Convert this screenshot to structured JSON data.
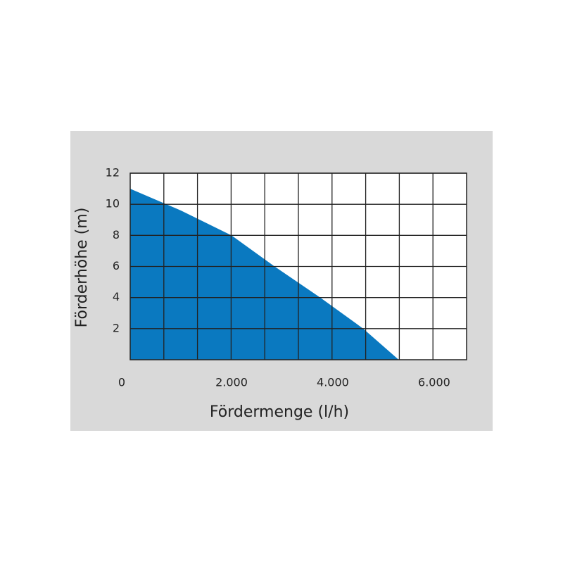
{
  "chart_data": {
    "type": "area",
    "x_label": "Fördermenge (l/h)",
    "y_label": "Förderhöhe (m)",
    "x": [
      0,
      1000,
      2000,
      2850,
      3750,
      4600,
      5300
    ],
    "values": [
      11,
      9.6,
      8,
      6,
      4,
      2,
      0
    ],
    "color": "#0a79c0",
    "xlim": [
      0,
      6640
    ],
    "xticks": [
      0,
      {
        "value": 2000,
        "label": "2.000"
      },
      {
        "value": 4000,
        "label": "4.000"
      },
      {
        "value": 6000,
        "label": "6.000"
      }
    ],
    "ylim": [
      0,
      12
    ],
    "yticks": [
      2,
      4,
      6,
      8,
      10,
      12
    ],
    "grid": true
  }
}
